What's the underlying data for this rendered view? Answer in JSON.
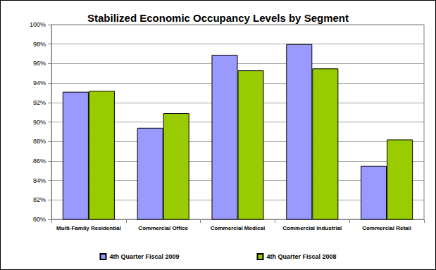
{
  "chart_data": {
    "type": "bar",
    "title": "Stabilized Economic Occupancy Levels by Segment",
    "categories": [
      "Multi-Family Residential",
      "Commercial Office",
      "Commercial Medical",
      "Commercial Industrial",
      "Commercial Retail"
    ],
    "series": [
      {
        "name": "4th Quarter Fiscal 2009",
        "color": "#9999ff",
        "values": [
          93.1,
          89.4,
          96.9,
          98.0,
          85.5
        ]
      },
      {
        "name": "4th Quarter Fiscal 2008",
        "color": "#99cc00",
        "values": [
          93.2,
          90.9,
          95.3,
          95.5,
          88.2
        ]
      }
    ],
    "ylim": [
      80,
      100
    ],
    "yticks": [
      {
        "value": 80,
        "label": "80%"
      },
      {
        "value": 82,
        "label": "82%"
      },
      {
        "value": 84,
        "label": "84%"
      },
      {
        "value": 86,
        "label": "86%"
      },
      {
        "value": 88,
        "label": "88%"
      },
      {
        "value": 90,
        "label": "90%"
      },
      {
        "value": 92,
        "label": "92%"
      },
      {
        "value": 94,
        "label": "94%"
      },
      {
        "value": 96,
        "label": "96%"
      },
      {
        "value": 98,
        "label": "98%"
      },
      {
        "value": 100,
        "label": "100%"
      }
    ],
    "grid": true,
    "legend": "bottom"
  }
}
